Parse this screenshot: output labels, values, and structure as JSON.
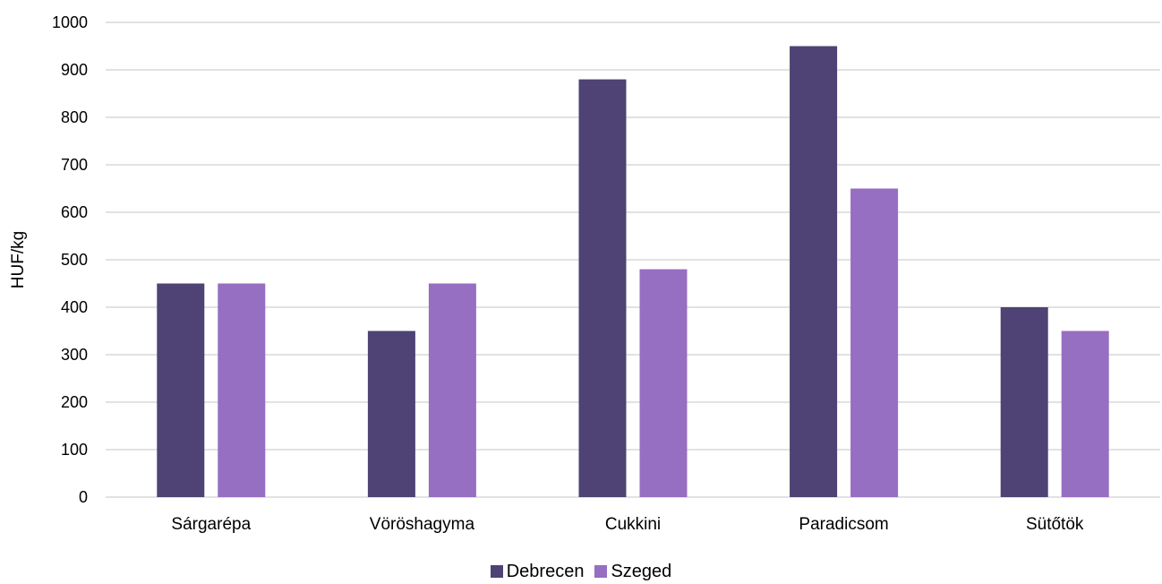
{
  "chart_data": {
    "type": "bar",
    "title": "",
    "xlabel": "",
    "ylabel": "HUF/kg",
    "ylim": [
      0,
      1000
    ],
    "yticks": [
      0,
      100,
      200,
      300,
      400,
      500,
      600,
      700,
      800,
      900,
      1000
    ],
    "categories": [
      "Sárgarépa",
      "Vöröshagyma",
      "Cukkini",
      "Paradicsom",
      "Sütőtök"
    ],
    "series": [
      {
        "name": "Debrecen",
        "color": "#4e4374",
        "values": [
          450,
          350,
          880,
          950,
          400
        ]
      },
      {
        "name": "Szeged",
        "color": "#966ec2",
        "values": [
          450,
          450,
          480,
          650,
          350
        ]
      }
    ],
    "grid": true,
    "legend_position": "bottom"
  }
}
